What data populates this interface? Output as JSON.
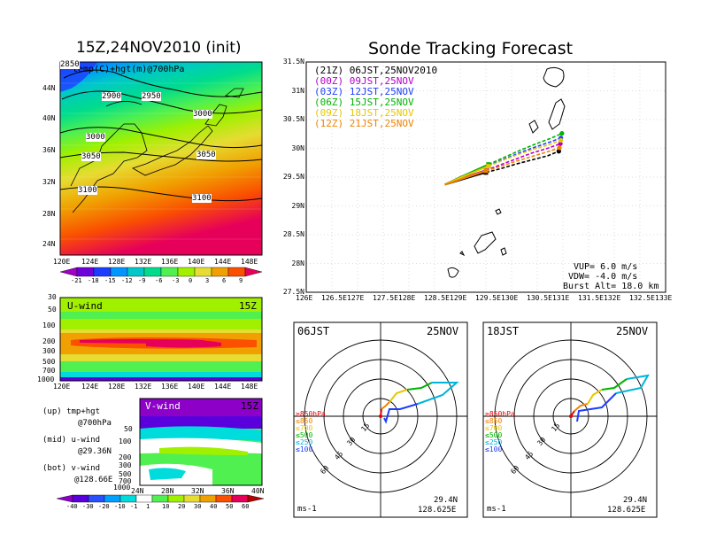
{
  "map_panel": {
    "title": "15Z,24NOV2010 (init)",
    "subtitle": "temp(C)+hgt(m)@700hPa",
    "lat_labels": [
      "44N",
      "40N",
      "36N",
      "32N",
      "28N",
      "24N"
    ],
    "lon_labels": [
      "120E",
      "124E",
      "128E",
      "132E",
      "136E",
      "140E",
      "144E",
      "148E"
    ],
    "contour_labels": [
      "2850",
      "2900",
      "2950",
      "3000",
      "3000",
      "3050",
      "3050",
      "3100",
      "3100"
    ],
    "colorbar_labels": [
      "-21",
      "-18",
      "-15",
      "-12",
      "-9",
      "-6",
      "-3",
      "0",
      "3",
      "6",
      "9"
    ],
    "colorbar_colors": [
      "#a000c8",
      "#6e00dc",
      "#1e3cff",
      "#0096ff",
      "#00c8c8",
      "#00dc8c",
      "#50f050",
      "#a0f000",
      "#e6dc32",
      "#f0a000",
      "#fa5000",
      "#e6005a"
    ]
  },
  "uwind_panel": {
    "label": "U-wind",
    "time": "15Z",
    "p_labels": [
      "30",
      "50",
      "100",
      "200",
      "300",
      "500",
      "700",
      "1000"
    ],
    "lon_labels": [
      "120E",
      "124E",
      "128E",
      "132E",
      "136E",
      "140E",
      "144E",
      "148E"
    ]
  },
  "vwind_panel": {
    "label": "V-wind",
    "time": "15Z",
    "p_labels": [
      "50",
      "100",
      "200",
      "300",
      "500",
      "700",
      "1000"
    ],
    "lat_labels": [
      "24N",
      "28N",
      "32N",
      "36N",
      "40N"
    ]
  },
  "wind_colorbar": {
    "labels": [
      "-40",
      "-30",
      "-20",
      "-10",
      "-1",
      "1",
      "10",
      "20",
      "30",
      "40",
      "50",
      "60"
    ],
    "colors": [
      "#8c00c8",
      "#5a00dc",
      "#2850ff",
      "#00a0ff",
      "#00dcdc",
      "#ffffff",
      "#50f050",
      "#a0f000",
      "#e6dc32",
      "#f0a000",
      "#fa5000",
      "#e6005a",
      "#b40000"
    ]
  },
  "legend_notes": {
    "up_a": "(up) tmp+hgt",
    "up_b": "@700hPa",
    "mid_a": "(mid) u-wind",
    "mid_b": "@29.36N",
    "bot_a": "(bot) v-wind",
    "bot_b": "@128.66E"
  },
  "track_panel": {
    "title": "Sonde Tracking Forecast",
    "lat_labels": [
      "31.5N",
      "31N",
      "30.5N",
      "30N",
      "29.5N",
      "29N",
      "28.5N",
      "28N",
      "27.5N"
    ],
    "lon_labels": [
      "126E",
      "126.5E",
      "127E",
      "127.5E",
      "128E",
      "128.5E",
      "129E",
      "129.5E",
      "130E",
      "130.5E",
      "131E",
      "131.5E",
      "132E",
      "132.5E",
      "133E"
    ],
    "legend": [
      {
        "tag": "(21Z)",
        "time": "06JST,25NOV2010",
        "color": "#000000"
      },
      {
        "tag": "(00Z)",
        "time": "09JST,25NOV",
        "color": "#b400c8"
      },
      {
        "tag": "(03Z)",
        "time": "12JST,25NOV",
        "color": "#1e3cff"
      },
      {
        "tag": "(06Z)",
        "time": "15JST,25NOV",
        "color": "#00b400"
      },
      {
        "tag": "(09Z)",
        "time": "18JST,25NOV",
        "color": "#e6c800"
      },
      {
        "tag": "(12Z)",
        "time": "21JST,25NOV",
        "color": "#f08200"
      }
    ],
    "vup": "VUP= 6.0 m/s",
    "vdw": "VDW= -4.0 m/s",
    "burst": "Burst Alt= 18.0 km"
  },
  "hodo_left": {
    "time": "06JST",
    "date": "25NOV",
    "ring_labels": [
      "15",
      "30",
      "45",
      "60"
    ],
    "levels": [
      {
        "text": "≥850hPa",
        "color": "#e60000"
      },
      {
        "text": "≤850",
        "color": "#f08200"
      },
      {
        "text": "≤700",
        "color": "#e6c800"
      },
      {
        "text": "≤500",
        "color": "#00b400"
      },
      {
        "text": "≤250",
        "color": "#00b4dc"
      },
      {
        "text": "≤100",
        "color": "#1e3cff"
      }
    ],
    "units": "ms-1",
    "lat": "29.4N",
    "lon": "128.625E"
  },
  "hodo_right": {
    "time": "18JST",
    "date": "25NOV",
    "ring_labels": [
      "15",
      "30",
      "45",
      "60"
    ],
    "levels": [
      {
        "text": "≥850hPa",
        "color": "#e60000"
      },
      {
        "text": "≤850",
        "color": "#f08200"
      },
      {
        "text": "≤700",
        "color": "#e6c800"
      },
      {
        "text": "≤500",
        "color": "#00b400"
      },
      {
        "text": "≤250",
        "color": "#00b4dc"
      },
      {
        "text": "≤100",
        "color": "#1e3cff"
      }
    ],
    "units": "ms-1",
    "lat": "29.4N",
    "lon": "128.625E"
  },
  "chart_data": [
    {
      "type": "line",
      "title": "Sonde Tracking Forecast",
      "xlabel": "",
      "ylabel": "",
      "xlim": [
        126,
        133
      ],
      "ylim": [
        27.5,
        31.5
      ],
      "grid": true,
      "legend_position": "top-left",
      "series": [
        {
          "name": "(21Z) 06JST,25NOV2010",
          "x": [
            128.7,
            129.0,
            129.3,
            129.5,
            129.8,
            130.1,
            130.4,
            130.7,
            130.92
          ],
          "y": [
            29.37,
            29.45,
            29.53,
            29.58,
            29.65,
            29.73,
            29.8,
            29.87,
            29.95
          ]
        },
        {
          "name": "(00Z) 09JST,25NOV",
          "x": [
            128.7,
            129.0,
            129.3,
            129.5,
            129.8,
            130.1,
            130.4,
            130.7,
            130.95
          ],
          "y": [
            29.37,
            29.47,
            29.56,
            29.62,
            29.72,
            29.82,
            29.92,
            30.0,
            30.08
          ]
        },
        {
          "name": "(03Z) 12JST,25NOV",
          "x": [
            128.7,
            129.0,
            129.3,
            129.55,
            129.85,
            130.15,
            130.45,
            130.75,
            130.96
          ],
          "y": [
            29.37,
            29.5,
            29.61,
            29.7,
            29.81,
            29.92,
            30.02,
            30.11,
            30.18
          ]
        },
        {
          "name": "(06Z) 15JST,25NOV",
          "x": [
            128.7,
            129.0,
            129.3,
            129.55,
            129.85,
            130.15,
            130.45,
            130.75,
            130.98
          ],
          "y": [
            29.37,
            29.5,
            29.62,
            29.72,
            29.84,
            29.96,
            30.07,
            30.17,
            30.26
          ]
        },
        {
          "name": "(09Z) 18JST,25NOV",
          "x": [
            128.7,
            129.0,
            129.3,
            129.55,
            129.85,
            130.15,
            130.45,
            130.75,
            130.96
          ],
          "y": [
            29.37,
            29.49,
            29.6,
            29.69,
            29.8,
            29.9,
            29.99,
            30.07,
            30.14
          ]
        },
        {
          "name": "(12Z) 21JST,25NOV",
          "x": [
            128.7,
            129.0,
            129.3,
            129.5,
            129.8,
            130.1,
            130.4,
            130.7,
            130.93
          ],
          "y": [
            29.37,
            29.46,
            29.55,
            29.61,
            29.69,
            29.78,
            29.86,
            29.94,
            30.01
          ]
        }
      ]
    }
  ]
}
